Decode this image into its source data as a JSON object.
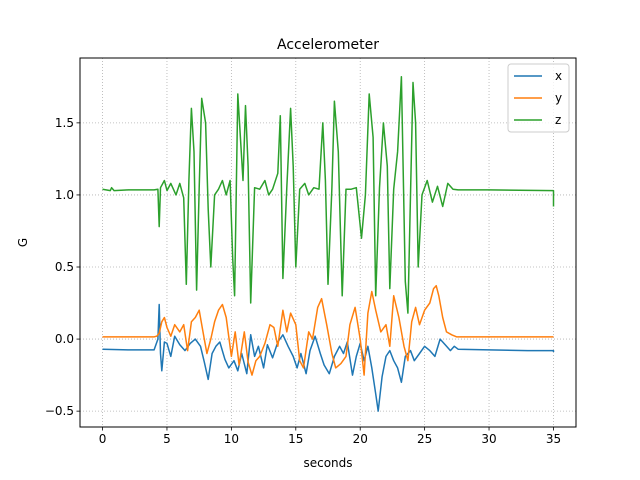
{
  "chart_data": {
    "type": "line",
    "title": "Accelerometer",
    "xlabel": "seconds",
    "ylabel": "G",
    "xlim": [
      -1.75,
      36.75
    ],
    "ylim": [
      -0.61,
      1.95
    ],
    "xticks": [
      0,
      5,
      10,
      15,
      20,
      25,
      30,
      35
    ],
    "xtick_labels": [
      "0",
      "5",
      "10",
      "15",
      "20",
      "25",
      "30",
      "35"
    ],
    "yticks": [
      -0.5,
      0.0,
      0.5,
      1.0,
      1.5
    ],
    "ytick_labels": [
      "−0.5",
      "0.0",
      "0.5",
      "1.0",
      "1.5"
    ],
    "grid": true,
    "legend_position": "top-right",
    "series": [
      {
        "name": "x",
        "color": "#1f77b4",
        "points": [
          [
            0,
            -0.07
          ],
          [
            2,
            -0.075
          ],
          [
            4,
            -0.075
          ],
          [
            4.3,
            0.0
          ],
          [
            4.4,
            0.24
          ],
          [
            4.5,
            -0.1
          ],
          [
            4.6,
            -0.22
          ],
          [
            4.8,
            -0.02
          ],
          [
            5,
            -0.03
          ],
          [
            5.3,
            -0.12
          ],
          [
            5.6,
            0.02
          ],
          [
            6,
            -0.04
          ],
          [
            6.4,
            -0.08
          ],
          [
            6.8,
            -0.03
          ],
          [
            7.2,
            0.0
          ],
          [
            7.6,
            -0.05
          ],
          [
            7.9,
            -0.16
          ],
          [
            8.2,
            -0.28
          ],
          [
            8.5,
            -0.1
          ],
          [
            8.8,
            -0.05
          ],
          [
            9.1,
            -0.02
          ],
          [
            9.5,
            -0.14
          ],
          [
            9.8,
            -0.2
          ],
          [
            10.2,
            -0.15
          ],
          [
            10.5,
            -0.22
          ],
          [
            10.8,
            -0.1
          ],
          [
            11.2,
            -0.24
          ],
          [
            11.5,
            0.03
          ],
          [
            11.8,
            -0.12
          ],
          [
            12.1,
            -0.05
          ],
          [
            12.5,
            -0.2
          ],
          [
            12.8,
            -0.04
          ],
          [
            13.2,
            -0.13
          ],
          [
            13.6,
            -0.02
          ],
          [
            14,
            0.03
          ],
          [
            14.4,
            -0.05
          ],
          [
            14.8,
            -0.12
          ],
          [
            15.1,
            -0.2
          ],
          [
            15.4,
            -0.1
          ],
          [
            15.8,
            -0.24
          ],
          [
            16.1,
            -0.08
          ],
          [
            16.5,
            0.02
          ],
          [
            16.9,
            -0.1
          ],
          [
            17.2,
            -0.18
          ],
          [
            17.6,
            -0.24
          ],
          [
            18,
            -0.12
          ],
          [
            18.4,
            -0.05
          ],
          [
            18.7,
            -0.1
          ],
          [
            19,
            -0.02
          ],
          [
            19.4,
            -0.25
          ],
          [
            19.7,
            -0.12
          ],
          [
            20,
            -0.03
          ],
          [
            20.3,
            -0.15
          ],
          [
            20.6,
            -0.05
          ],
          [
            20.9,
            -0.2
          ],
          [
            21.2,
            -0.38
          ],
          [
            21.4,
            -0.5
          ],
          [
            21.7,
            -0.26
          ],
          [
            22,
            -0.12
          ],
          [
            22.3,
            -0.08
          ],
          [
            22.6,
            -0.15
          ],
          [
            22.9,
            -0.2
          ],
          [
            23.2,
            -0.3
          ],
          [
            23.5,
            -0.12
          ],
          [
            23.9,
            -0.08
          ],
          [
            24.2,
            -0.15
          ],
          [
            24.6,
            -0.1
          ],
          [
            25,
            -0.05
          ],
          [
            25.4,
            -0.08
          ],
          [
            25.8,
            -0.12
          ],
          [
            26.2,
            0.0
          ],
          [
            26.6,
            -0.04
          ],
          [
            27,
            -0.08
          ],
          [
            27.3,
            -0.05
          ],
          [
            27.6,
            -0.07
          ],
          [
            30,
            -0.075
          ],
          [
            33,
            -0.08
          ],
          [
            35,
            -0.08
          ],
          [
            35,
            -0.09
          ]
        ]
      },
      {
        "name": "y",
        "color": "#ff7f0e",
        "points": [
          [
            0,
            0.015
          ],
          [
            2,
            0.015
          ],
          [
            4,
            0.015
          ],
          [
            4.2,
            0.02
          ],
          [
            4.4,
            0.04
          ],
          [
            4.6,
            0.12
          ],
          [
            4.8,
            0.15
          ],
          [
            5,
            0.08
          ],
          [
            5.3,
            0.02
          ],
          [
            5.6,
            0.1
          ],
          [
            6,
            0.05
          ],
          [
            6.3,
            0.1
          ],
          [
            6.6,
            -0.08
          ],
          [
            6.9,
            0.12
          ],
          [
            7.2,
            0.15
          ],
          [
            7.5,
            0.2
          ],
          [
            7.8,
            0.05
          ],
          [
            8.1,
            -0.1
          ],
          [
            8.4,
            0.0
          ],
          [
            8.7,
            0.12
          ],
          [
            9,
            0.2
          ],
          [
            9.3,
            0.24
          ],
          [
            9.6,
            0.15
          ],
          [
            10,
            -0.12
          ],
          [
            10.3,
            0.05
          ],
          [
            10.6,
            -0.18
          ],
          [
            11,
            0.05
          ],
          [
            11.3,
            -0.16
          ],
          [
            11.6,
            -0.25
          ],
          [
            11.9,
            -0.15
          ],
          [
            12.2,
            -0.12
          ],
          [
            12.6,
            -0.03
          ],
          [
            13,
            0.1
          ],
          [
            13.3,
            0.08
          ],
          [
            13.6,
            -0.05
          ],
          [
            14,
            0.2
          ],
          [
            14.3,
            0.05
          ],
          [
            14.6,
            0.18
          ],
          [
            15,
            0.1
          ],
          [
            15.3,
            -0.15
          ],
          [
            15.6,
            -0.2
          ],
          [
            16,
            0.05
          ],
          [
            16.3,
            0.0
          ],
          [
            16.7,
            0.22
          ],
          [
            17,
            0.28
          ],
          [
            17.4,
            0.1
          ],
          [
            17.8,
            -0.1
          ],
          [
            18.1,
            -0.2
          ],
          [
            18.5,
            -0.17
          ],
          [
            18.9,
            -0.12
          ],
          [
            19.2,
            0.1
          ],
          [
            19.6,
            0.22
          ],
          [
            20,
            0.0
          ],
          [
            20.3,
            -0.25
          ],
          [
            20.6,
            0.18
          ],
          [
            20.9,
            0.33
          ],
          [
            21.2,
            0.2
          ],
          [
            21.6,
            0.05
          ],
          [
            22,
            0.1
          ],
          [
            22.3,
            -0.05
          ],
          [
            22.6,
            0.3
          ],
          [
            23,
            0.15
          ],
          [
            23.4,
            -0.05
          ],
          [
            23.7,
            -0.15
          ],
          [
            24,
            0.12
          ],
          [
            24.3,
            0.22
          ],
          [
            24.6,
            0.1
          ],
          [
            25,
            0.2
          ],
          [
            25.4,
            0.25
          ],
          [
            25.7,
            0.35
          ],
          [
            25.9,
            0.37
          ],
          [
            26.1,
            0.3
          ],
          [
            26.4,
            0.15
          ],
          [
            26.7,
            0.05
          ],
          [
            27.1,
            0.03
          ],
          [
            27.5,
            0.015
          ],
          [
            30,
            0.015
          ],
          [
            35,
            0.015
          ]
        ]
      },
      {
        "name": "z",
        "color": "#2ca02c",
        "points": [
          [
            0,
            1.04
          ],
          [
            0.6,
            1.03
          ],
          [
            0.7,
            1.05
          ],
          [
            0.9,
            1.03
          ],
          [
            2,
            1.035
          ],
          [
            4,
            1.035
          ],
          [
            4.3,
            1.04
          ],
          [
            4.4,
            0.78
          ],
          [
            4.5,
            1.05
          ],
          [
            4.8,
            1.1
          ],
          [
            5,
            1.03
          ],
          [
            5.3,
            1.08
          ],
          [
            5.7,
            1.0
          ],
          [
            6,
            1.08
          ],
          [
            6.3,
            0.98
          ],
          [
            6.5,
            0.38
          ],
          [
            6.7,
            1.1
          ],
          [
            6.9,
            1.6
          ],
          [
            7.1,
            1.3
          ],
          [
            7.3,
            0.34
          ],
          [
            7.5,
            1.05
          ],
          [
            7.7,
            1.67
          ],
          [
            8,
            1.5
          ],
          [
            8.2,
            0.9
          ],
          [
            8.4,
            0.5
          ],
          [
            8.7,
            1.0
          ],
          [
            9,
            1.04
          ],
          [
            9.3,
            1.1
          ],
          [
            9.6,
            1.0
          ],
          [
            9.9,
            1.1
          ],
          [
            10.1,
            0.56
          ],
          [
            10.25,
            0.3
          ],
          [
            10.5,
            1.7
          ],
          [
            10.7,
            1.4
          ],
          [
            10.9,
            1.1
          ],
          [
            11.1,
            1.62
          ],
          [
            11.3,
            1.2
          ],
          [
            11.5,
            0.25
          ],
          [
            11.8,
            1.05
          ],
          [
            12.2,
            1.04
          ],
          [
            12.6,
            1.1
          ],
          [
            12.9,
            1.0
          ],
          [
            13.2,
            1.04
          ],
          [
            13.6,
            1.15
          ],
          [
            13.8,
            1.55
          ],
          [
            14,
            0.42
          ],
          [
            14.3,
            1.05
          ],
          [
            14.6,
            1.6
          ],
          [
            14.8,
            1.2
          ],
          [
            15,
            0.5
          ],
          [
            15.3,
            1.04
          ],
          [
            15.7,
            1.08
          ],
          [
            16,
            1.0
          ],
          [
            16.4,
            1.05
          ],
          [
            16.8,
            1.04
          ],
          [
            17.1,
            1.5
          ],
          [
            17.3,
            1.1
          ],
          [
            17.5,
            0.38
          ],
          [
            17.8,
            1.05
          ],
          [
            18,
            1.65
          ],
          [
            18.3,
            1.3
          ],
          [
            18.6,
            0.3
          ],
          [
            18.9,
            1.04
          ],
          [
            19.3,
            1.04
          ],
          [
            19.7,
            1.05
          ],
          [
            20.1,
            0.7
          ],
          [
            20.4,
            1.0
          ],
          [
            20.7,
            1.7
          ],
          [
            21,
            1.4
          ],
          [
            21.2,
            0.3
          ],
          [
            21.5,
            1.05
          ],
          [
            21.8,
            1.5
          ],
          [
            22.1,
            1.2
          ],
          [
            22.3,
            0.35
          ],
          [
            22.6,
            1.04
          ],
          [
            22.9,
            1.3
          ],
          [
            23.2,
            1.82
          ],
          [
            23.5,
            0.4
          ],
          [
            23.7,
            0.18
          ],
          [
            23.9,
            1.0
          ],
          [
            24.1,
            1.78
          ],
          [
            24.3,
            1.5
          ],
          [
            24.5,
            0.5
          ],
          [
            24.8,
            1.0
          ],
          [
            25.2,
            1.1
          ],
          [
            25.6,
            0.95
          ],
          [
            26,
            1.06
          ],
          [
            26.4,
            0.92
          ],
          [
            26.8,
            1.08
          ],
          [
            27.2,
            1.04
          ],
          [
            27.6,
            1.035
          ],
          [
            30,
            1.035
          ],
          [
            35,
            1.03
          ],
          [
            35,
            0.92
          ]
        ]
      }
    ]
  }
}
